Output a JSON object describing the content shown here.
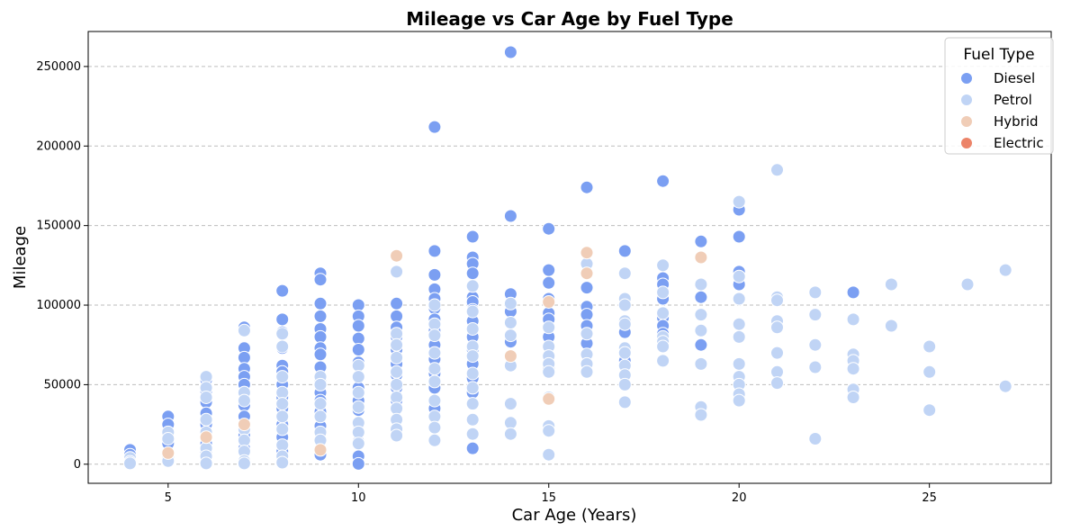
{
  "chart_data": {
    "type": "scatter",
    "title": "Mileage vs Car Age by Fuel Type",
    "xlabel": "Car Age (Years)",
    "ylabel": "Mileage",
    "xlim": [
      2.9,
      28.2
    ],
    "ylim": [
      -12000,
      272000
    ],
    "xticks": [
      5,
      10,
      15,
      20,
      25
    ],
    "yticks": [
      0,
      50000,
      100000,
      150000,
      200000,
      250000
    ],
    "grid": "y-dashed",
    "legend": {
      "title": "Fuel Type",
      "position": "top-right",
      "entries": [
        "Diesel",
        "Petrol",
        "Hybrid",
        "Electric"
      ]
    },
    "colors": {
      "Diesel": "#7b9ff2",
      "Petrol": "#c0d4f5",
      "Hybrid": "#f0cdb7",
      "Electric": "#ec8469"
    },
    "series": [
      {
        "name": "Diesel",
        "points": [
          [
            4,
            9000
          ],
          [
            4,
            6000
          ],
          [
            4,
            3000
          ],
          [
            5,
            30000
          ],
          [
            5,
            25000
          ],
          [
            5,
            13000
          ],
          [
            6,
            53000
          ],
          [
            6,
            46000
          ],
          [
            6,
            39000
          ],
          [
            6,
            32000
          ],
          [
            6,
            25000
          ],
          [
            6,
            13000
          ],
          [
            6,
            8000
          ],
          [
            6,
            1500
          ],
          [
            7,
            86000
          ],
          [
            7,
            73000
          ],
          [
            7,
            67000
          ],
          [
            7,
            60000
          ],
          [
            7,
            55000
          ],
          [
            7,
            50000
          ],
          [
            7,
            45000
          ],
          [
            7,
            37000
          ],
          [
            7,
            30000
          ],
          [
            7,
            18000
          ],
          [
            7,
            10000
          ],
          [
            8,
            109000
          ],
          [
            8,
            91000
          ],
          [
            8,
            83000
          ],
          [
            8,
            73000
          ],
          [
            8,
            62000
          ],
          [
            8,
            58000
          ],
          [
            8,
            50000
          ],
          [
            8,
            42000
          ],
          [
            8,
            35000
          ],
          [
            8,
            25000
          ],
          [
            8,
            17000
          ],
          [
            8,
            8000
          ],
          [
            9,
            120000
          ],
          [
            9,
            116000
          ],
          [
            9,
            101000
          ],
          [
            9,
            93000
          ],
          [
            9,
            85000
          ],
          [
            9,
            80000
          ],
          [
            9,
            73000
          ],
          [
            9,
            69000
          ],
          [
            9,
            61000
          ],
          [
            9,
            53000
          ],
          [
            9,
            45000
          ],
          [
            9,
            40000
          ],
          [
            9,
            33000
          ],
          [
            9,
            24000
          ],
          [
            9,
            15000
          ],
          [
            9,
            6000
          ],
          [
            10,
            100000
          ],
          [
            10,
            93000
          ],
          [
            10,
            87000
          ],
          [
            10,
            79000
          ],
          [
            10,
            72000
          ],
          [
            10,
            64000
          ],
          [
            10,
            55000
          ],
          [
            10,
            48000
          ],
          [
            10,
            40000
          ],
          [
            10,
            34000
          ],
          [
            10,
            25000
          ],
          [
            10,
            14000
          ],
          [
            10,
            5000
          ],
          [
            10,
            200
          ],
          [
            11,
            101000
          ],
          [
            11,
            93000
          ],
          [
            11,
            86000
          ],
          [
            11,
            80000
          ],
          [
            11,
            72000
          ],
          [
            11,
            63000
          ],
          [
            11,
            56000
          ],
          [
            11,
            48000
          ],
          [
            11,
            40000
          ],
          [
            12,
            134000
          ],
          [
            12,
            119000
          ],
          [
            12,
            110000
          ],
          [
            12,
            104000
          ],
          [
            12,
            98000
          ],
          [
            12,
            91000
          ],
          [
            12,
            84000
          ],
          [
            12,
            75000
          ],
          [
            12,
            66000
          ],
          [
            12,
            57000
          ],
          [
            12,
            48000
          ],
          [
            12,
            35000
          ],
          [
            12,
            212000
          ],
          [
            13,
            143000
          ],
          [
            13,
            130000
          ],
          [
            13,
            126000
          ],
          [
            13,
            120000
          ],
          [
            13,
            105000
          ],
          [
            13,
            102000
          ],
          [
            13,
            97000
          ],
          [
            13,
            90000
          ],
          [
            13,
            80000
          ],
          [
            13,
            72000
          ],
          [
            13,
            63000
          ],
          [
            13,
            54000
          ],
          [
            13,
            45000
          ],
          [
            13,
            10000
          ],
          [
            14,
            259000
          ],
          [
            14,
            156000
          ],
          [
            14,
            107000
          ],
          [
            14,
            96000
          ],
          [
            14,
            77000
          ],
          [
            15,
            148000
          ],
          [
            15,
            122000
          ],
          [
            15,
            114000
          ],
          [
            15,
            104000
          ],
          [
            15,
            95000
          ],
          [
            15,
            91000
          ],
          [
            15,
            80000
          ],
          [
            15,
            60000
          ],
          [
            16,
            174000
          ],
          [
            16,
            111000
          ],
          [
            16,
            99000
          ],
          [
            16,
            94000
          ],
          [
            16,
            87000
          ],
          [
            16,
            76000
          ],
          [
            17,
            134000
          ],
          [
            17,
            83000
          ],
          [
            17,
            65000
          ],
          [
            18,
            178000
          ],
          [
            18,
            117000
          ],
          [
            18,
            113000
          ],
          [
            18,
            104000
          ],
          [
            18,
            92000
          ],
          [
            18,
            87000
          ],
          [
            18,
            82000
          ],
          [
            19,
            140000
          ],
          [
            19,
            105000
          ],
          [
            19,
            75000
          ],
          [
            20,
            160000
          ],
          [
            20,
            143000
          ],
          [
            20,
            121000
          ],
          [
            20,
            113000
          ],
          [
            23,
            108000
          ]
        ]
      },
      {
        "name": "Petrol",
        "points": [
          [
            4,
            4000
          ],
          [
            4,
            1500
          ],
          [
            4,
            500
          ],
          [
            5,
            20000
          ],
          [
            5,
            16000
          ],
          [
            5,
            4000
          ],
          [
            5,
            2000
          ],
          [
            6,
            55000
          ],
          [
            6,
            48000
          ],
          [
            6,
            42000
          ],
          [
            6,
            28000
          ],
          [
            6,
            20000
          ],
          [
            6,
            10000
          ],
          [
            6,
            5000
          ],
          [
            6,
            500
          ],
          [
            7,
            84000
          ],
          [
            7,
            45000
          ],
          [
            7,
            40000
          ],
          [
            7,
            22000
          ],
          [
            7,
            15000
          ],
          [
            7,
            8000
          ],
          [
            7,
            2000
          ],
          [
            7,
            500
          ],
          [
            8,
            82000
          ],
          [
            8,
            74000
          ],
          [
            8,
            55000
          ],
          [
            8,
            45000
          ],
          [
            8,
            38000
          ],
          [
            8,
            30000
          ],
          [
            8,
            22000
          ],
          [
            8,
            12000
          ],
          [
            8,
            5000
          ],
          [
            8,
            1000
          ],
          [
            9,
            55000
          ],
          [
            9,
            50000
          ],
          [
            9,
            38000
          ],
          [
            9,
            30000
          ],
          [
            9,
            20000
          ],
          [
            9,
            15000
          ],
          [
            10,
            62000
          ],
          [
            10,
            55000
          ],
          [
            10,
            45000
          ],
          [
            10,
            36000
          ],
          [
            10,
            26000
          ],
          [
            10,
            20000
          ],
          [
            10,
            13000
          ],
          [
            11,
            121000
          ],
          [
            11,
            82000
          ],
          [
            11,
            75000
          ],
          [
            11,
            67000
          ],
          [
            11,
            58000
          ],
          [
            11,
            50000
          ],
          [
            11,
            42000
          ],
          [
            11,
            35000
          ],
          [
            11,
            28000
          ],
          [
            11,
            22000
          ],
          [
            11,
            18000
          ],
          [
            12,
            100000
          ],
          [
            12,
            88000
          ],
          [
            12,
            81000
          ],
          [
            12,
            70000
          ],
          [
            12,
            60000
          ],
          [
            12,
            52000
          ],
          [
            12,
            40000
          ],
          [
            12,
            30000
          ],
          [
            12,
            23000
          ],
          [
            12,
            15000
          ],
          [
            13,
            112000
          ],
          [
            13,
            96000
          ],
          [
            13,
            85000
          ],
          [
            13,
            74000
          ],
          [
            13,
            68000
          ],
          [
            13,
            57000
          ],
          [
            13,
            48000
          ],
          [
            13,
            38000
          ],
          [
            13,
            28000
          ],
          [
            13,
            19000
          ],
          [
            14,
            101000
          ],
          [
            14,
            89000
          ],
          [
            14,
            81000
          ],
          [
            14,
            62000
          ],
          [
            14,
            38000
          ],
          [
            14,
            26000
          ],
          [
            14,
            19000
          ],
          [
            15,
            86000
          ],
          [
            15,
            74000
          ],
          [
            15,
            68000
          ],
          [
            15,
            63000
          ],
          [
            15,
            58000
          ],
          [
            15,
            42000
          ],
          [
            15,
            24000
          ],
          [
            15,
            21000
          ],
          [
            15,
            6000
          ],
          [
            16,
            126000
          ],
          [
            16,
            82000
          ],
          [
            16,
            69000
          ],
          [
            16,
            63000
          ],
          [
            16,
            58000
          ],
          [
            17,
            120000
          ],
          [
            17,
            104000
          ],
          [
            17,
            100000
          ],
          [
            17,
            90000
          ],
          [
            17,
            88000
          ],
          [
            17,
            73000
          ],
          [
            17,
            70000
          ],
          [
            17,
            62000
          ],
          [
            17,
            56000
          ],
          [
            17,
            50000
          ],
          [
            17,
            39000
          ],
          [
            18,
            125000
          ],
          [
            18,
            108000
          ],
          [
            18,
            95000
          ],
          [
            18,
            80000
          ],
          [
            18,
            77000
          ],
          [
            18,
            74000
          ],
          [
            18,
            65000
          ],
          [
            19,
            113000
          ],
          [
            19,
            94000
          ],
          [
            19,
            84000
          ],
          [
            19,
            63000
          ],
          [
            19,
            36000
          ],
          [
            19,
            31000
          ],
          [
            20,
            165000
          ],
          [
            20,
            118000
          ],
          [
            20,
            104000
          ],
          [
            20,
            88000
          ],
          [
            20,
            80000
          ],
          [
            20,
            63000
          ],
          [
            20,
            55000
          ],
          [
            20,
            50000
          ],
          [
            20,
            44000
          ],
          [
            20,
            40000
          ],
          [
            21,
            185000
          ],
          [
            21,
            105000
          ],
          [
            21,
            103000
          ],
          [
            21,
            90000
          ],
          [
            21,
            86000
          ],
          [
            21,
            70000
          ],
          [
            21,
            58000
          ],
          [
            21,
            51000
          ],
          [
            22,
            108000
          ],
          [
            22,
            94000
          ],
          [
            22,
            75000
          ],
          [
            22,
            61000
          ],
          [
            22,
            16000
          ],
          [
            23,
            91000
          ],
          [
            23,
            69000
          ],
          [
            23,
            65000
          ],
          [
            23,
            60000
          ],
          [
            23,
            47000
          ],
          [
            23,
            42000
          ],
          [
            24,
            113000
          ],
          [
            24,
            87000
          ],
          [
            25,
            74000
          ],
          [
            25,
            58000
          ],
          [
            25,
            34000
          ],
          [
            26,
            113000
          ],
          [
            27,
            122000
          ],
          [
            27,
            49000
          ]
        ]
      },
      {
        "name": "Hybrid",
        "points": [
          [
            5,
            7000
          ],
          [
            6,
            17000
          ],
          [
            7,
            25000
          ],
          [
            9,
            9000
          ],
          [
            11,
            131000
          ],
          [
            14,
            68000
          ],
          [
            15,
            102000
          ],
          [
            15,
            41000
          ],
          [
            16,
            133000
          ],
          [
            16,
            120000
          ],
          [
            19,
            130000
          ]
        ]
      },
      {
        "name": "Electric",
        "points": []
      }
    ]
  }
}
